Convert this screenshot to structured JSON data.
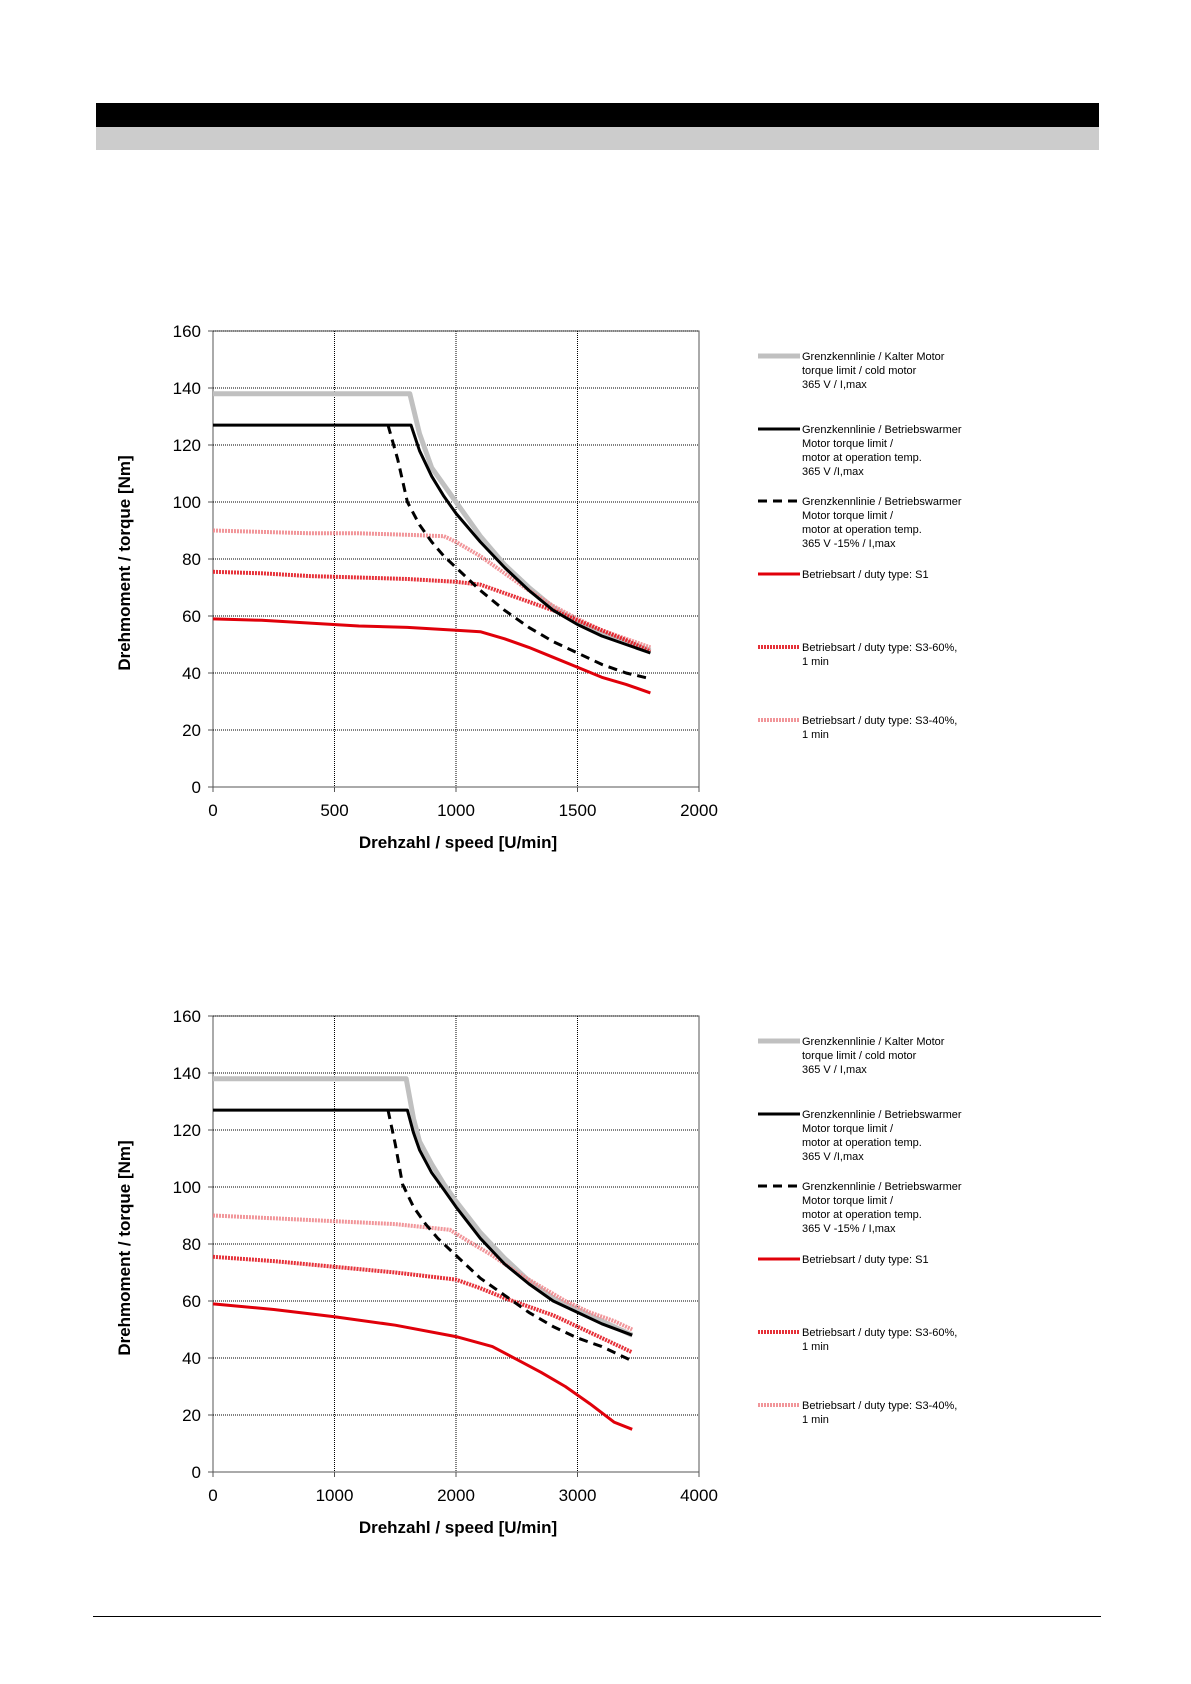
{
  "colors": {
    "cold_limit": "#c0c0c0",
    "warm_limit": "#000000",
    "warm_limit_minus15": "#000000",
    "s1": "#e0000a",
    "s3_60": "#e31b23",
    "s3_40": "#f08a8e"
  },
  "legend_items": [
    {
      "key": "cold",
      "style": "solid-gray",
      "lines": [
        "Grenzkennlinie / Kalter Motor",
        "torque limit / cold  motor",
        "365 V / I,max"
      ]
    },
    {
      "key": "warm",
      "style": "solid-black",
      "lines": [
        "Grenzkennlinie / Betriebswarmer",
        "Motor              torque limit /",
        "motor at operation temp.",
        "365 V /I,max"
      ]
    },
    {
      "key": "warm15",
      "style": "dashed-black",
      "lines": [
        "Grenzkennlinie / Betriebswarmer",
        "Motor              torque limit /",
        "motor at operation temp.",
        "365 V  -15% / I,max"
      ]
    },
    {
      "key": "s1",
      "style": "solid-red",
      "lines": [
        "Betriebsart / duty type: S1"
      ]
    },
    {
      "key": "s3_60",
      "style": "hatched-red",
      "lines": [
        "Betriebsart / duty type: S3-60%,",
        "1 min"
      ]
    },
    {
      "key": "s3_40",
      "style": "hatched-lightred",
      "lines": [
        "Betriebsart / duty type: S3-40%,",
        "1 min"
      ]
    }
  ],
  "chart_data": [
    {
      "type": "line",
      "title": "",
      "xlabel": "Drehzahl / speed [U/min]",
      "ylabel": "Drehmoment / torque [Nm]",
      "xlim": [
        0,
        2000
      ],
      "ylim": [
        0,
        160
      ],
      "x_ticks": [
        0,
        500,
        1000,
        1500,
        2000
      ],
      "y_ticks": [
        0,
        20,
        40,
        60,
        80,
        100,
        120,
        140,
        160
      ],
      "grid": true,
      "legend_position": "right",
      "series": [
        {
          "key": "cold",
          "name": "Grenzkennlinie / Kalter Motor torque limit / cold  motor 365 V / I,max",
          "x": [
            0,
            810,
            850,
            900,
            950,
            1000,
            1100,
            1200,
            1300,
            1400,
            1500,
            1600,
            1700,
            1800
          ],
          "y": [
            138,
            138,
            124,
            112,
            106,
            100,
            88,
            78,
            70,
            63,
            58,
            54,
            51,
            48
          ]
        },
        {
          "key": "warm",
          "name": "Grenzkennlinie / Betriebswarmer Motor torque limit / motor at operation temp. 365 V /I,max",
          "x": [
            0,
            815,
            850,
            900,
            950,
            1000,
            1100,
            1200,
            1300,
            1400,
            1500,
            1600,
            1700,
            1800
          ],
          "y": [
            127,
            127,
            118,
            109,
            102,
            96,
            86,
            77,
            69,
            62,
            57,
            53,
            50,
            47
          ]
        },
        {
          "key": "warm15",
          "name": "Grenzkennlinie / Betriebswarmer Motor torque limit / motor at operation temp. 365 V  -15% / I,max",
          "x": [
            720,
            760,
            800,
            850,
            900,
            950,
            1000,
            1100,
            1200,
            1300,
            1400,
            1500,
            1600,
            1700,
            1800
          ],
          "y": [
            127,
            115,
            100,
            92,
            86,
            81,
            77,
            69,
            62,
            56,
            51,
            47,
            43,
            40,
            38
          ]
        },
        {
          "key": "s1",
          "name": "Betriebsart / duty type: S1",
          "x": [
            0,
            200,
            400,
            600,
            800,
            1000,
            1100,
            1200,
            1300,
            1400,
            1500,
            1600,
            1700,
            1800
          ],
          "y": [
            59,
            58.5,
            57.5,
            56.5,
            56,
            55,
            54.5,
            52,
            49,
            45.5,
            42,
            38.5,
            36,
            33
          ]
        },
        {
          "key": "s3_60",
          "name": "Betriebsart / duty type: S3-60%, 1 min",
          "x": [
            0,
            200,
            400,
            600,
            800,
            1000,
            1100,
            1200,
            1300,
            1400,
            1500,
            1600,
            1700,
            1800
          ],
          "y": [
            75.5,
            75,
            74,
            73.5,
            73,
            72,
            71,
            68,
            65,
            62,
            58.5,
            55,
            51.5,
            47.5
          ]
        },
        {
          "key": "s3_40",
          "name": "Betriebsart / duty type: S3-40%, 1 min",
          "x": [
            0,
            200,
            400,
            600,
            800,
            950,
            1000,
            1100,
            1200,
            1300,
            1400,
            1500,
            1600,
            1700,
            1800
          ],
          "y": [
            90,
            89.5,
            89,
            89,
            88.5,
            88,
            86,
            81,
            75,
            69,
            63.5,
            59,
            55,
            52,
            49
          ]
        }
      ]
    },
    {
      "type": "line",
      "title": "",
      "xlabel": "Drehzahl / speed [U/min]",
      "ylabel": "Drehmoment / torque [Nm]",
      "xlim": [
        0,
        4000
      ],
      "ylim": [
        0,
        160
      ],
      "x_ticks": [
        0,
        1000,
        2000,
        3000,
        4000
      ],
      "y_ticks": [
        0,
        20,
        40,
        60,
        80,
        100,
        120,
        140,
        160
      ],
      "grid": true,
      "legend_position": "right",
      "series": [
        {
          "key": "cold",
          "name": "Grenzkennlinie / Kalter Motor torque limit / cold  motor 365 V / I,max",
          "x": [
            0,
            1590,
            1650,
            1700,
            1800,
            1900,
            2000,
            2200,
            2400,
            2600,
            2800,
            3000,
            3200,
            3450
          ],
          "y": [
            138,
            138,
            124,
            116,
            108,
            101,
            95,
            84,
            75,
            67,
            61,
            57,
            53,
            48
          ]
        },
        {
          "key": "warm",
          "name": "Grenzkennlinie / Betriebswarmer Motor torque limit / motor at operation temp. 365 V /I,max",
          "x": [
            0,
            1600,
            1650,
            1700,
            1800,
            1900,
            2000,
            2200,
            2400,
            2600,
            2800,
            3000,
            3200,
            3450
          ],
          "y": [
            127,
            127,
            119,
            113,
            105,
            99,
            93,
            82,
            73,
            66,
            60,
            56,
            52,
            48
          ]
        },
        {
          "key": "warm15",
          "name": "Grenzkennlinie / Betriebswarmer Motor torque limit / motor at operation temp. 365 V  -15% / I,max",
          "x": [
            1440,
            1500,
            1560,
            1650,
            1750,
            1850,
            2000,
            2200,
            2400,
            2600,
            2800,
            3000,
            3200,
            3450
          ],
          "y": [
            127,
            115,
            101,
            93,
            87,
            82,
            76,
            68,
            62,
            56,
            51,
            47,
            44,
            39
          ]
        },
        {
          "key": "s1",
          "name": "Betriebsart / duty type: S1",
          "x": [
            0,
            500,
            1000,
            1500,
            2000,
            2300,
            2500,
            2700,
            2900,
            3100,
            3300,
            3450
          ],
          "y": [
            59,
            57,
            54.5,
            51.5,
            47.5,
            44,
            39.5,
            35,
            30,
            24,
            17.5,
            15
          ]
        },
        {
          "key": "s3_60",
          "name": "Betriebsart / duty type: S3-60%, 1 min",
          "x": [
            0,
            500,
            1000,
            1500,
            2000,
            2200,
            2400,
            2600,
            2800,
            3000,
            3200,
            3450
          ],
          "y": [
            75.5,
            74,
            72,
            70,
            67.5,
            64.5,
            61,
            58,
            55,
            51,
            47,
            42
          ]
        },
        {
          "key": "s3_40",
          "name": "Betriebsart / duty type: S3-40%, 1 min",
          "x": [
            0,
            500,
            1000,
            1500,
            1950,
            2100,
            2300,
            2500,
            2700,
            2900,
            3100,
            3300,
            3450
          ],
          "y": [
            90,
            89,
            88,
            87,
            85,
            81,
            76,
            70,
            65,
            60,
            56,
            53,
            50
          ]
        }
      ]
    }
  ]
}
